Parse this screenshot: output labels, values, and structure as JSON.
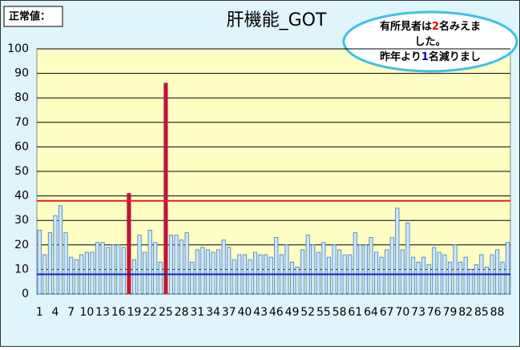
{
  "chart_data": {
    "type": "bar",
    "title": "肝機能_GOT",
    "corner_label": "正常値：",
    "annotation": {
      "lines": [
        [
          {
            "text": "有所見者は",
            "color": "#000000"
          },
          {
            "text": "2",
            "color": "#e00000"
          },
          {
            "text": "名みえま",
            "color": "#000000"
          }
        ],
        [
          {
            "text": "した。",
            "color": "#000000"
          }
        ],
        [
          {
            "text": "昨年より",
            "color": "#000000"
          },
          {
            "text": "1",
            "color": "#0000c0"
          },
          {
            "text": "名減りまし",
            "color": "#000000"
          }
        ]
      ]
    },
    "categories": [
      "1",
      null,
      null,
      "4",
      null,
      null,
      "7",
      null,
      null,
      "10",
      null,
      null,
      "13",
      null,
      null,
      "16",
      null,
      null,
      "19",
      null,
      null,
      "22",
      null,
      null,
      "25",
      null,
      null,
      "28",
      null,
      null,
      "31",
      null,
      null,
      "34",
      null,
      null,
      "37",
      null,
      null,
      "40",
      null,
      null,
      "43",
      null,
      null,
      "46",
      null,
      null,
      "49",
      null,
      null,
      "52",
      null,
      null,
      "55",
      null,
      null,
      "58",
      null,
      null,
      "61",
      null,
      null,
      "64",
      null,
      null,
      "67",
      null,
      null,
      "70",
      null,
      null,
      "73",
      null,
      null,
      "76",
      null,
      null,
      "79",
      null,
      null,
      "82",
      null,
      null,
      "85",
      null,
      null,
      "88",
      null,
      null
    ],
    "values": [
      26,
      16,
      25,
      32,
      36,
      25,
      15,
      14,
      16,
      17,
      17,
      21,
      21,
      19,
      20,
      20,
      19,
      41,
      14,
      24,
      17,
      26,
      21,
      13,
      86,
      24,
      24,
      22,
      25,
      13,
      18,
      19,
      18,
      17,
      18,
      22,
      19,
      14,
      16,
      16,
      14,
      17,
      16,
      16,
      15,
      23,
      16,
      20,
      13,
      11,
      18,
      24,
      20,
      17,
      21,
      15,
      20,
      18,
      16,
      16,
      25,
      20,
      20,
      23,
      17,
      15,
      18,
      23,
      35,
      18,
      29,
      15,
      13,
      15,
      12,
      19,
      17,
      16,
      13,
      20,
      13,
      15,
      10,
      12,
      16,
      11,
      16,
      18,
      13,
      21
    ],
    "colors": [
      "#cfe6fb",
      "#cfe6fb",
      "#cfe6fb",
      "#cfe6fb",
      "#cfe6fb",
      "#cfe6fb",
      "#cfe6fb",
      "#cfe6fb",
      "#cfe6fb",
      "#cfe6fb",
      "#cfe6fb",
      "#cfe6fb",
      "#cfe6fb",
      "#cfe6fb",
      "#cfe6fb",
      "#cfe6fb",
      "#cfe6fb",
      "#c0143c",
      "#cfe6fb",
      "#cfe6fb",
      "#cfe6fb",
      "#cfe6fb",
      "#cfe6fb",
      "#cfe6fb",
      "#c0143c",
      "#cfe6fb",
      "#cfe6fb",
      "#cfe6fb",
      "#cfe6fb",
      "#cfe6fb",
      "#cfe6fb",
      "#cfe6fb",
      "#cfe6fb",
      "#cfe6fb",
      "#cfe6fb",
      "#cfe6fb",
      "#cfe6fb",
      "#cfe6fb",
      "#cfe6fb",
      "#cfe6fb",
      "#cfe6fb",
      "#cfe6fb",
      "#cfe6fb",
      "#cfe6fb",
      "#cfe6fb",
      "#cfe6fb",
      "#cfe6fb",
      "#cfe6fb",
      "#cfe6fb",
      "#cfe6fb",
      "#cfe6fb",
      "#cfe6fb",
      "#cfe6fb",
      "#cfe6fb",
      "#cfe6fb",
      "#cfe6fb",
      "#cfe6fb",
      "#cfe6fb",
      "#cfe6fb",
      "#cfe6fb",
      "#cfe6fb",
      "#cfe6fb",
      "#cfe6fb",
      "#cfe6fb",
      "#cfe6fb",
      "#cfe6fb",
      "#cfe6fb",
      "#cfe6fb",
      "#cfe6fb",
      "#cfe6fb",
      "#cfe6fb",
      "#cfe6fb",
      "#cfe6fb",
      "#cfe6fb",
      "#cfe6fb",
      "#cfe6fb",
      "#cfe6fb",
      "#cfe6fb",
      "#cfe6fb",
      "#cfe6fb",
      "#cfe6fb",
      "#cfe6fb",
      "#cfe6fb",
      "#cfe6fb",
      "#cfe6fb",
      "#cfe6fb",
      "#cfe6fb",
      "#cfe6fb",
      "#cfe6fb",
      "#cfe6fb"
    ],
    "bar_outline": "#3a7cc4",
    "reference_lines": [
      {
        "value": 38,
        "color": "#e02020"
      },
      {
        "value": 8,
        "color": "#1020c0"
      }
    ],
    "ylim": [
      0,
      100
    ],
    "yticks": [
      0,
      10,
      20,
      30,
      40,
      50,
      60,
      70,
      80,
      90,
      100
    ],
    "grid": true
  }
}
